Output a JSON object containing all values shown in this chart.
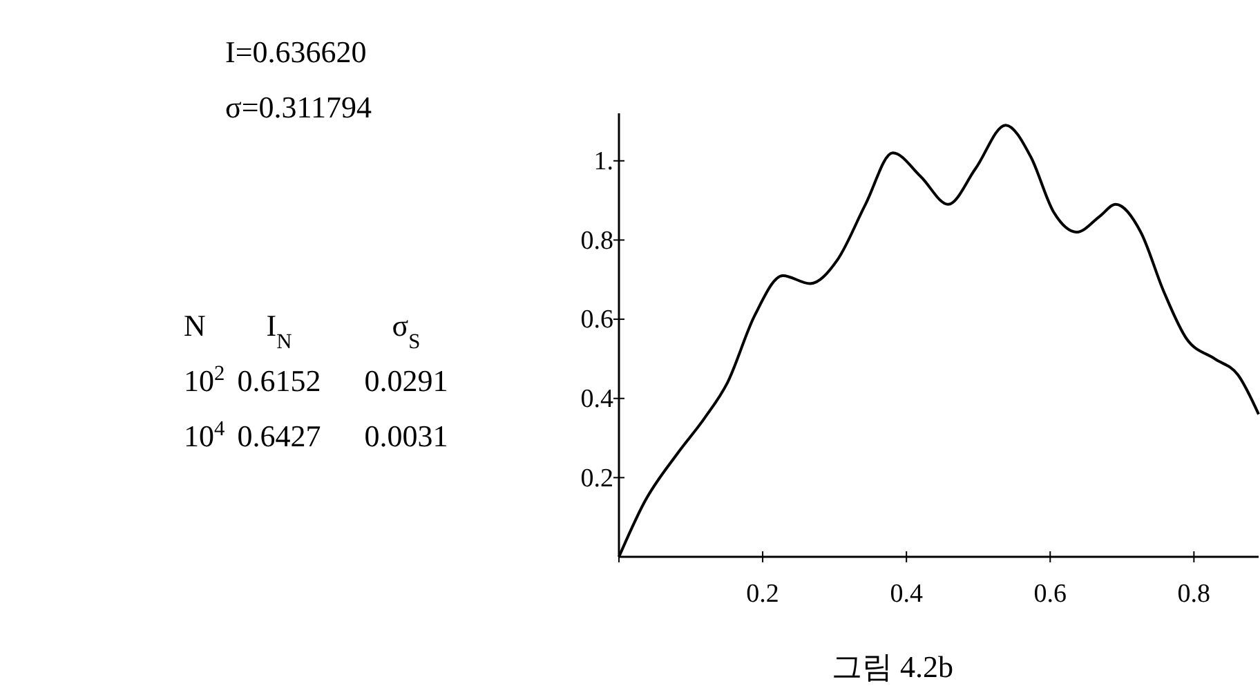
{
  "chart_data": {
    "type": "line",
    "x": [
      0,
      0.036,
      0.081,
      0.119,
      0.151,
      0.189,
      0.228,
      0.266,
      0.304,
      0.343,
      0.381,
      0.42,
      0.458,
      0.496,
      0.538,
      0.573,
      0.605,
      0.637,
      0.669,
      0.691,
      0.726,
      0.758,
      0.79,
      0.829,
      0.861,
      0.89
    ],
    "series": [
      {
        "color": "#000000",
        "values": [
          0,
          0.14,
          0.26,
          0.35,
          0.44,
          0.61,
          0.71,
          0.69,
          0.75,
          0.89,
          1.02,
          0.96,
          0.89,
          0.98,
          1.09,
          1.01,
          0.87,
          0.82,
          0.86,
          0.89,
          0.82,
          0.67,
          0.55,
          0.5,
          0.46,
          0.36
        ]
      }
    ],
    "xlim": [
      0,
      0.89
    ],
    "ylim": [
      0,
      1.12
    ],
    "xticks": [
      {
        "value": 0,
        "label": null
      },
      0.2,
      0.4,
      0.6,
      0.8
    ],
    "yticks": [
      0.2,
      0.4,
      0.6,
      0.8,
      {
        "value": 1,
        "label": "1."
      }
    ],
    "annotations": [
      "I=0.636620",
      "σ=0.311794",
      "N",
      "I$_{N}$",
      "σ$_{S}$",
      "10$^{2}$",
      "0.6152",
      "0.0291",
      "10$^{4}$",
      "0.6427",
      "0.0031",
      "그림 4.2b"
    ]
  }
}
